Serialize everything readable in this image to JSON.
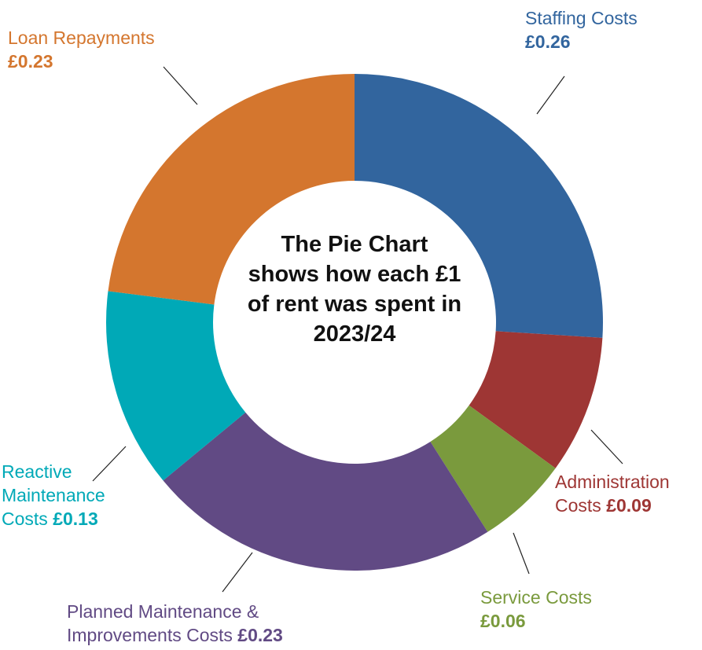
{
  "chart_data": {
    "type": "donut",
    "title": "The Pie Chart shows how each £1 of rent was spent in 2023/24",
    "categories": [
      "Staffing Costs",
      "Administration Costs",
      "Service Costs",
      "Planned Maintenance & Improvements Costs",
      "Reactive Maintenance Costs",
      "Loan Repayments"
    ],
    "values": [
      0.26,
      0.09,
      0.06,
      0.23,
      0.13,
      0.23
    ],
    "value_labels": [
      "£0.26",
      "£0.09",
      "£0.06",
      "£0.23",
      "£0.13",
      "£0.23"
    ],
    "colors": [
      "#32659e",
      "#9e3634",
      "#7a9a3d",
      "#614a84",
      "#00a9b7",
      "#d4762e"
    ]
  }
}
